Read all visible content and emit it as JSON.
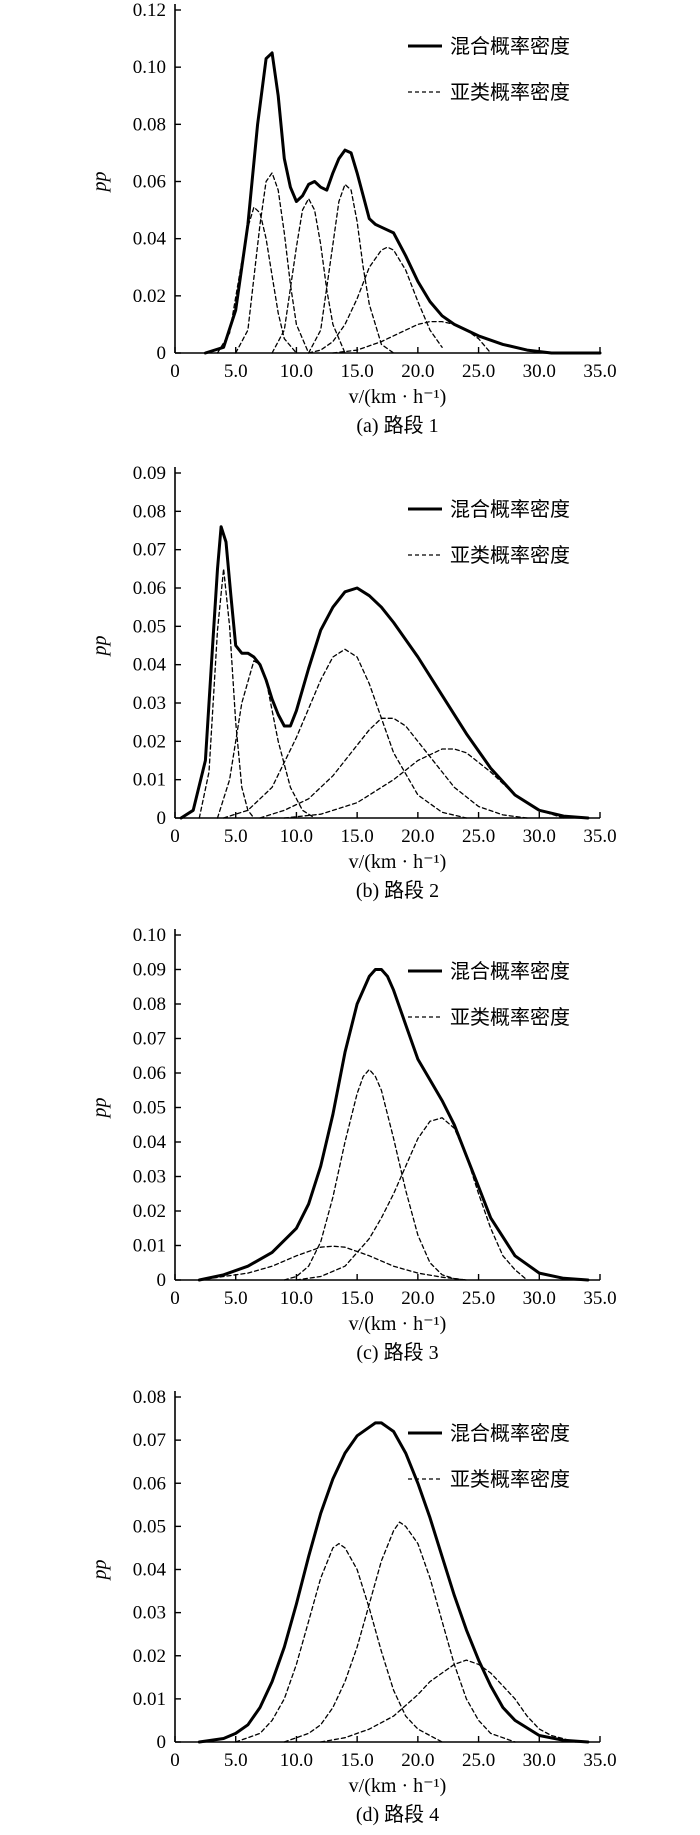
{
  "chart_data": [
    {
      "type": "line",
      "caption": "(a) 路段 1",
      "xlabel": "v/(km · h⁻¹)",
      "ylabel": "pp",
      "xlim": [
        0,
        35
      ],
      "ylim": [
        0,
        0.12
      ],
      "xticks": [
        "0",
        "5.0",
        "10.0",
        "15.0",
        "20.0",
        "25.0",
        "30.0",
        "35.0"
      ],
      "yticks": [
        "0",
        "0.02",
        "0.04",
        "0.06",
        "0.08",
        "0.10",
        "0.12"
      ],
      "legend": {
        "position": "top-right",
        "mixture": "混合概率密度",
        "component": "亚类概率密度"
      },
      "series": [
        {
          "style": "solid",
          "x": [
            2.5,
            4.0,
            5.0,
            6.0,
            6.8,
            7.5,
            8.0,
            8.5,
            9.0,
            9.5,
            10.0,
            10.5,
            11.0,
            11.5,
            12.0,
            12.5,
            13.0,
            13.5,
            14.0,
            14.5,
            15.0,
            15.5,
            16.0,
            16.5,
            17.0,
            18.0,
            19.0,
            20.0,
            21.0,
            22.0,
            23.0,
            25.0,
            27.0,
            29.0,
            31.0,
            33.0,
            35.0
          ],
          "y": [
            0.0,
            0.002,
            0.015,
            0.045,
            0.08,
            0.103,
            0.105,
            0.09,
            0.068,
            0.058,
            0.053,
            0.055,
            0.059,
            0.06,
            0.058,
            0.057,
            0.063,
            0.068,
            0.071,
            0.07,
            0.063,
            0.055,
            0.047,
            0.045,
            0.044,
            0.042,
            0.034,
            0.025,
            0.018,
            0.013,
            0.01,
            0.006,
            0.003,
            0.001,
            0.0,
            0.0,
            0.0
          ]
        },
        {
          "style": "dashed",
          "x": [
            3.5,
            4.5,
            5.5,
            6.0,
            6.5,
            7.0,
            7.5,
            8.0,
            8.5,
            9.0,
            10.0
          ],
          "y": [
            0.0,
            0.007,
            0.032,
            0.044,
            0.051,
            0.049,
            0.04,
            0.027,
            0.014,
            0.005,
            0.0
          ]
        },
        {
          "style": "dashed",
          "x": [
            5.0,
            6.0,
            7.0,
            7.5,
            8.0,
            8.5,
            9.0,
            9.5,
            10.0,
            11.0
          ],
          "y": [
            0.0,
            0.008,
            0.045,
            0.06,
            0.063,
            0.057,
            0.042,
            0.024,
            0.01,
            0.0
          ]
        },
        {
          "style": "dashed",
          "x": [
            8.0,
            9.0,
            10.0,
            10.5,
            11.0,
            11.5,
            12.0,
            12.5,
            13.0,
            14.0
          ],
          "y": [
            0.0,
            0.008,
            0.037,
            0.05,
            0.054,
            0.05,
            0.038,
            0.022,
            0.01,
            0.0
          ]
        },
        {
          "style": "dashed",
          "x": [
            11.0,
            12.0,
            13.0,
            13.5,
            14.0,
            14.5,
            15.0,
            15.5,
            16.0,
            17.0,
            18.0
          ],
          "y": [
            0.0,
            0.008,
            0.038,
            0.053,
            0.059,
            0.057,
            0.046,
            0.03,
            0.017,
            0.003,
            0.0
          ]
        },
        {
          "style": "dashed",
          "x": [
            11.0,
            12.0,
            13.0,
            14.0,
            15.0,
            16.0,
            17.0,
            17.5,
            18.0,
            19.0,
            20.0,
            21.0,
            22.0
          ],
          "y": [
            0.0,
            0.001,
            0.004,
            0.01,
            0.019,
            0.03,
            0.036,
            0.037,
            0.036,
            0.029,
            0.018,
            0.008,
            0.002
          ]
        },
        {
          "style": "dashed",
          "x": [
            13.0,
            15.0,
            17.0,
            19.0,
            20.0,
            21.0,
            22.0,
            23.0,
            24.0,
            25.0,
            26.0
          ],
          "y": [
            0.0,
            0.001,
            0.004,
            0.008,
            0.01,
            0.011,
            0.011,
            0.01,
            0.008,
            0.005,
            0.0
          ]
        }
      ]
    },
    {
      "type": "line",
      "caption": "(b) 路段 2",
      "xlabel": "v/(km · h⁻¹)",
      "ylabel": "pp",
      "xlim": [
        0,
        35
      ],
      "ylim": [
        0,
        0.09
      ],
      "xticks": [
        "0",
        "5.0",
        "10.0",
        "15.0",
        "20.0",
        "25.0",
        "30.0",
        "35.0"
      ],
      "yticks": [
        "0",
        "0.01",
        "0.02",
        "0.03",
        "0.04",
        "0.05",
        "0.06",
        "0.07",
        "0.08",
        "0.09"
      ],
      "legend": {
        "position": "top-right",
        "mixture": "混合概率密度",
        "component": "亚类概率密度"
      },
      "series": [
        {
          "style": "solid",
          "x": [
            0.5,
            1.5,
            2.5,
            3.0,
            3.5,
            3.8,
            4.2,
            4.6,
            5.0,
            5.5,
            6.0,
            6.5,
            7.0,
            7.5,
            8.0,
            8.5,
            9.0,
            9.5,
            10.0,
            11.0,
            12.0,
            13.0,
            14.0,
            15.0,
            16.0,
            17.0,
            18.0,
            20.0,
            22.0,
            24.0,
            26.0,
            28.0,
            30.0,
            32.0,
            34.0
          ],
          "y": [
            0.0,
            0.002,
            0.015,
            0.04,
            0.065,
            0.076,
            0.072,
            0.058,
            0.045,
            0.043,
            0.043,
            0.042,
            0.04,
            0.036,
            0.031,
            0.027,
            0.024,
            0.024,
            0.028,
            0.039,
            0.049,
            0.055,
            0.059,
            0.06,
            0.058,
            0.055,
            0.051,
            0.042,
            0.032,
            0.022,
            0.013,
            0.006,
            0.002,
            0.0005,
            0.0
          ]
        },
        {
          "style": "dashed",
          "x": [
            2.0,
            2.8,
            3.5,
            4.0,
            4.5,
            5.0,
            5.5,
            6.0,
            6.5
          ],
          "y": [
            0.0,
            0.012,
            0.049,
            0.065,
            0.05,
            0.025,
            0.008,
            0.002,
            0.0
          ]
        },
        {
          "style": "dashed",
          "x": [
            3.5,
            4.5,
            5.5,
            6.5,
            7.0,
            7.5,
            8.5,
            9.5,
            10.5,
            11.5
          ],
          "y": [
            0.0,
            0.01,
            0.03,
            0.041,
            0.04,
            0.036,
            0.02,
            0.008,
            0.002,
            0.0
          ]
        },
        {
          "style": "dashed",
          "x": [
            4.0,
            6.0,
            8.0,
            10.0,
            12.0,
            13.0,
            14.0,
            15.0,
            16.0,
            18.0,
            20.0,
            22.0,
            24.0
          ],
          "y": [
            0.0,
            0.002,
            0.008,
            0.021,
            0.036,
            0.042,
            0.044,
            0.042,
            0.035,
            0.017,
            0.006,
            0.0015,
            0.0
          ]
        },
        {
          "style": "dashed",
          "x": [
            7.0,
            9.0,
            11.0,
            13.0,
            15.0,
            16.0,
            17.0,
            18.0,
            19.0,
            21.0,
            23.0,
            25.0,
            27.0,
            29.0
          ],
          "y": [
            0.0,
            0.002,
            0.005,
            0.011,
            0.019,
            0.023,
            0.026,
            0.026,
            0.024,
            0.016,
            0.008,
            0.003,
            0.0008,
            0.0
          ]
        },
        {
          "style": "dashed",
          "x": [
            9.0,
            12.0,
            15.0,
            18.0,
            20.0,
            22.0,
            23.0,
            24.0,
            26.0,
            28.0,
            30.0,
            32.0
          ],
          "y": [
            0.0,
            0.001,
            0.004,
            0.01,
            0.015,
            0.018,
            0.018,
            0.017,
            0.012,
            0.006,
            0.002,
            0.0
          ]
        }
      ]
    },
    {
      "type": "line",
      "caption": "(c) 路段 3",
      "xlabel": "v/(km · h⁻¹)",
      "ylabel": "pp",
      "xlim": [
        0,
        35
      ],
      "ylim": [
        0,
        0.1
      ],
      "xticks": [
        "0",
        "5.0",
        "10.0",
        "15.0",
        "20.0",
        "25.0",
        "30.0",
        "35.0"
      ],
      "yticks": [
        "0",
        "0.01",
        "0.02",
        "0.03",
        "0.04",
        "0.05",
        "0.06",
        "0.07",
        "0.08",
        "0.09",
        "0.10"
      ],
      "legend": {
        "position": "top-right",
        "mixture": "混合概率密度",
        "component": "亚类概率密度"
      },
      "series": [
        {
          "style": "solid",
          "x": [
            2.0,
            4.0,
            6.0,
            8.0,
            10.0,
            11.0,
            12.0,
            13.0,
            14.0,
            15.0,
            16.0,
            16.5,
            17.0,
            17.5,
            18.0,
            19.0,
            20.0,
            21.0,
            22.0,
            23.0,
            24.0,
            25.0,
            26.0,
            28.0,
            30.0,
            32.0,
            34.0
          ],
          "y": [
            0.0,
            0.0015,
            0.004,
            0.008,
            0.015,
            0.022,
            0.033,
            0.048,
            0.066,
            0.08,
            0.088,
            0.09,
            0.09,
            0.088,
            0.084,
            0.074,
            0.064,
            0.058,
            0.052,
            0.045,
            0.036,
            0.027,
            0.018,
            0.007,
            0.002,
            0.0005,
            0.0
          ]
        },
        {
          "style": "dashed",
          "x": [
            2.0,
            4.0,
            6.0,
            8.0,
            10.0,
            12.0,
            13.0,
            14.0,
            16.0,
            18.0,
            20.0,
            22.0,
            24.0
          ],
          "y": [
            0.0,
            0.001,
            0.002,
            0.004,
            0.007,
            0.0095,
            0.0098,
            0.0095,
            0.007,
            0.004,
            0.002,
            0.0008,
            0.0
          ]
        },
        {
          "style": "dashed",
          "x": [
            9.0,
            10.0,
            11.0,
            12.0,
            13.0,
            14.0,
            15.0,
            15.5,
            16.0,
            16.5,
            17.0,
            18.0,
            19.0,
            20.0,
            21.0,
            22.0,
            23.0,
            24.0
          ],
          "y": [
            0.0,
            0.001,
            0.004,
            0.011,
            0.024,
            0.04,
            0.054,
            0.059,
            0.061,
            0.059,
            0.055,
            0.041,
            0.026,
            0.013,
            0.005,
            0.0015,
            0.0004,
            0.0
          ]
        },
        {
          "style": "dashed",
          "x": [
            10.0,
            12.0,
            14.0,
            16.0,
            17.0,
            18.0,
            19.0,
            20.0,
            21.0,
            22.0,
            23.0,
            24.0,
            25.0,
            26.0,
            27.0,
            28.0,
            29.0
          ],
          "y": [
            0.0,
            0.001,
            0.004,
            0.012,
            0.018,
            0.025,
            0.033,
            0.041,
            0.046,
            0.047,
            0.044,
            0.036,
            0.025,
            0.015,
            0.007,
            0.003,
            0.0
          ]
        }
      ]
    },
    {
      "type": "line",
      "caption": "(d) 路段 4",
      "xlabel": "v/(km · h⁻¹)",
      "ylabel": "pp",
      "xlim": [
        0,
        35
      ],
      "ylim": [
        0,
        0.08
      ],
      "xticks": [
        "0",
        "5.0",
        "10.0",
        "15.0",
        "20.0",
        "25.0",
        "30.0",
        "35.0"
      ],
      "yticks": [
        "0",
        "0.01",
        "0.02",
        "0.03",
        "0.04",
        "0.05",
        "0.06",
        "0.07",
        "0.08"
      ],
      "legend": {
        "position": "top-right",
        "mixture": "混合概率密度",
        "component": "亚类概率密度"
      },
      "series": [
        {
          "style": "solid",
          "x": [
            2.0,
            4.0,
            5.0,
            6.0,
            7.0,
            8.0,
            9.0,
            10.0,
            11.0,
            12.0,
            13.0,
            14.0,
            15.0,
            16.0,
            16.5,
            17.0,
            17.5,
            18.0,
            19.0,
            20.0,
            21.0,
            22.0,
            23.0,
            24.0,
            25.0,
            26.0,
            27.0,
            28.0,
            30.0,
            32.0,
            34.0
          ],
          "y": [
            0.0,
            0.0008,
            0.002,
            0.004,
            0.008,
            0.014,
            0.022,
            0.032,
            0.043,
            0.053,
            0.061,
            0.067,
            0.071,
            0.073,
            0.074,
            0.074,
            0.073,
            0.072,
            0.067,
            0.06,
            0.052,
            0.043,
            0.034,
            0.026,
            0.019,
            0.013,
            0.008,
            0.005,
            0.0015,
            0.0004,
            0.0
          ]
        },
        {
          "style": "dashed",
          "x": [
            5.0,
            7.0,
            8.0,
            9.0,
            10.0,
            11.0,
            12.0,
            13.0,
            13.5,
            14.0,
            15.0,
            16.0,
            17.0,
            18.0,
            19.0,
            20.0,
            22.0
          ],
          "y": [
            0.0,
            0.002,
            0.005,
            0.01,
            0.018,
            0.028,
            0.038,
            0.045,
            0.046,
            0.045,
            0.04,
            0.031,
            0.021,
            0.012,
            0.006,
            0.003,
            0.0
          ]
        },
        {
          "style": "dashed",
          "x": [
            9.0,
            11.0,
            12.0,
            13.0,
            14.0,
            15.0,
            16.0,
            17.0,
            18.0,
            18.5,
            19.0,
            20.0,
            21.0,
            22.0,
            23.0,
            24.0,
            25.0,
            26.0,
            28.0
          ],
          "y": [
            0.0,
            0.002,
            0.004,
            0.008,
            0.014,
            0.022,
            0.032,
            0.042,
            0.049,
            0.051,
            0.05,
            0.046,
            0.038,
            0.028,
            0.018,
            0.01,
            0.005,
            0.002,
            0.0
          ]
        },
        {
          "style": "dashed",
          "x": [
            12.0,
            14.0,
            16.0,
            18.0,
            20.0,
            21.0,
            22.0,
            23.0,
            24.0,
            25.0,
            26.0,
            27.0,
            28.0,
            29.0,
            30.0,
            31.0,
            33.0
          ],
          "y": [
            0.0,
            0.001,
            0.003,
            0.006,
            0.011,
            0.014,
            0.016,
            0.018,
            0.019,
            0.018,
            0.016,
            0.013,
            0.01,
            0.006,
            0.003,
            0.0015,
            0.0
          ]
        }
      ]
    }
  ]
}
